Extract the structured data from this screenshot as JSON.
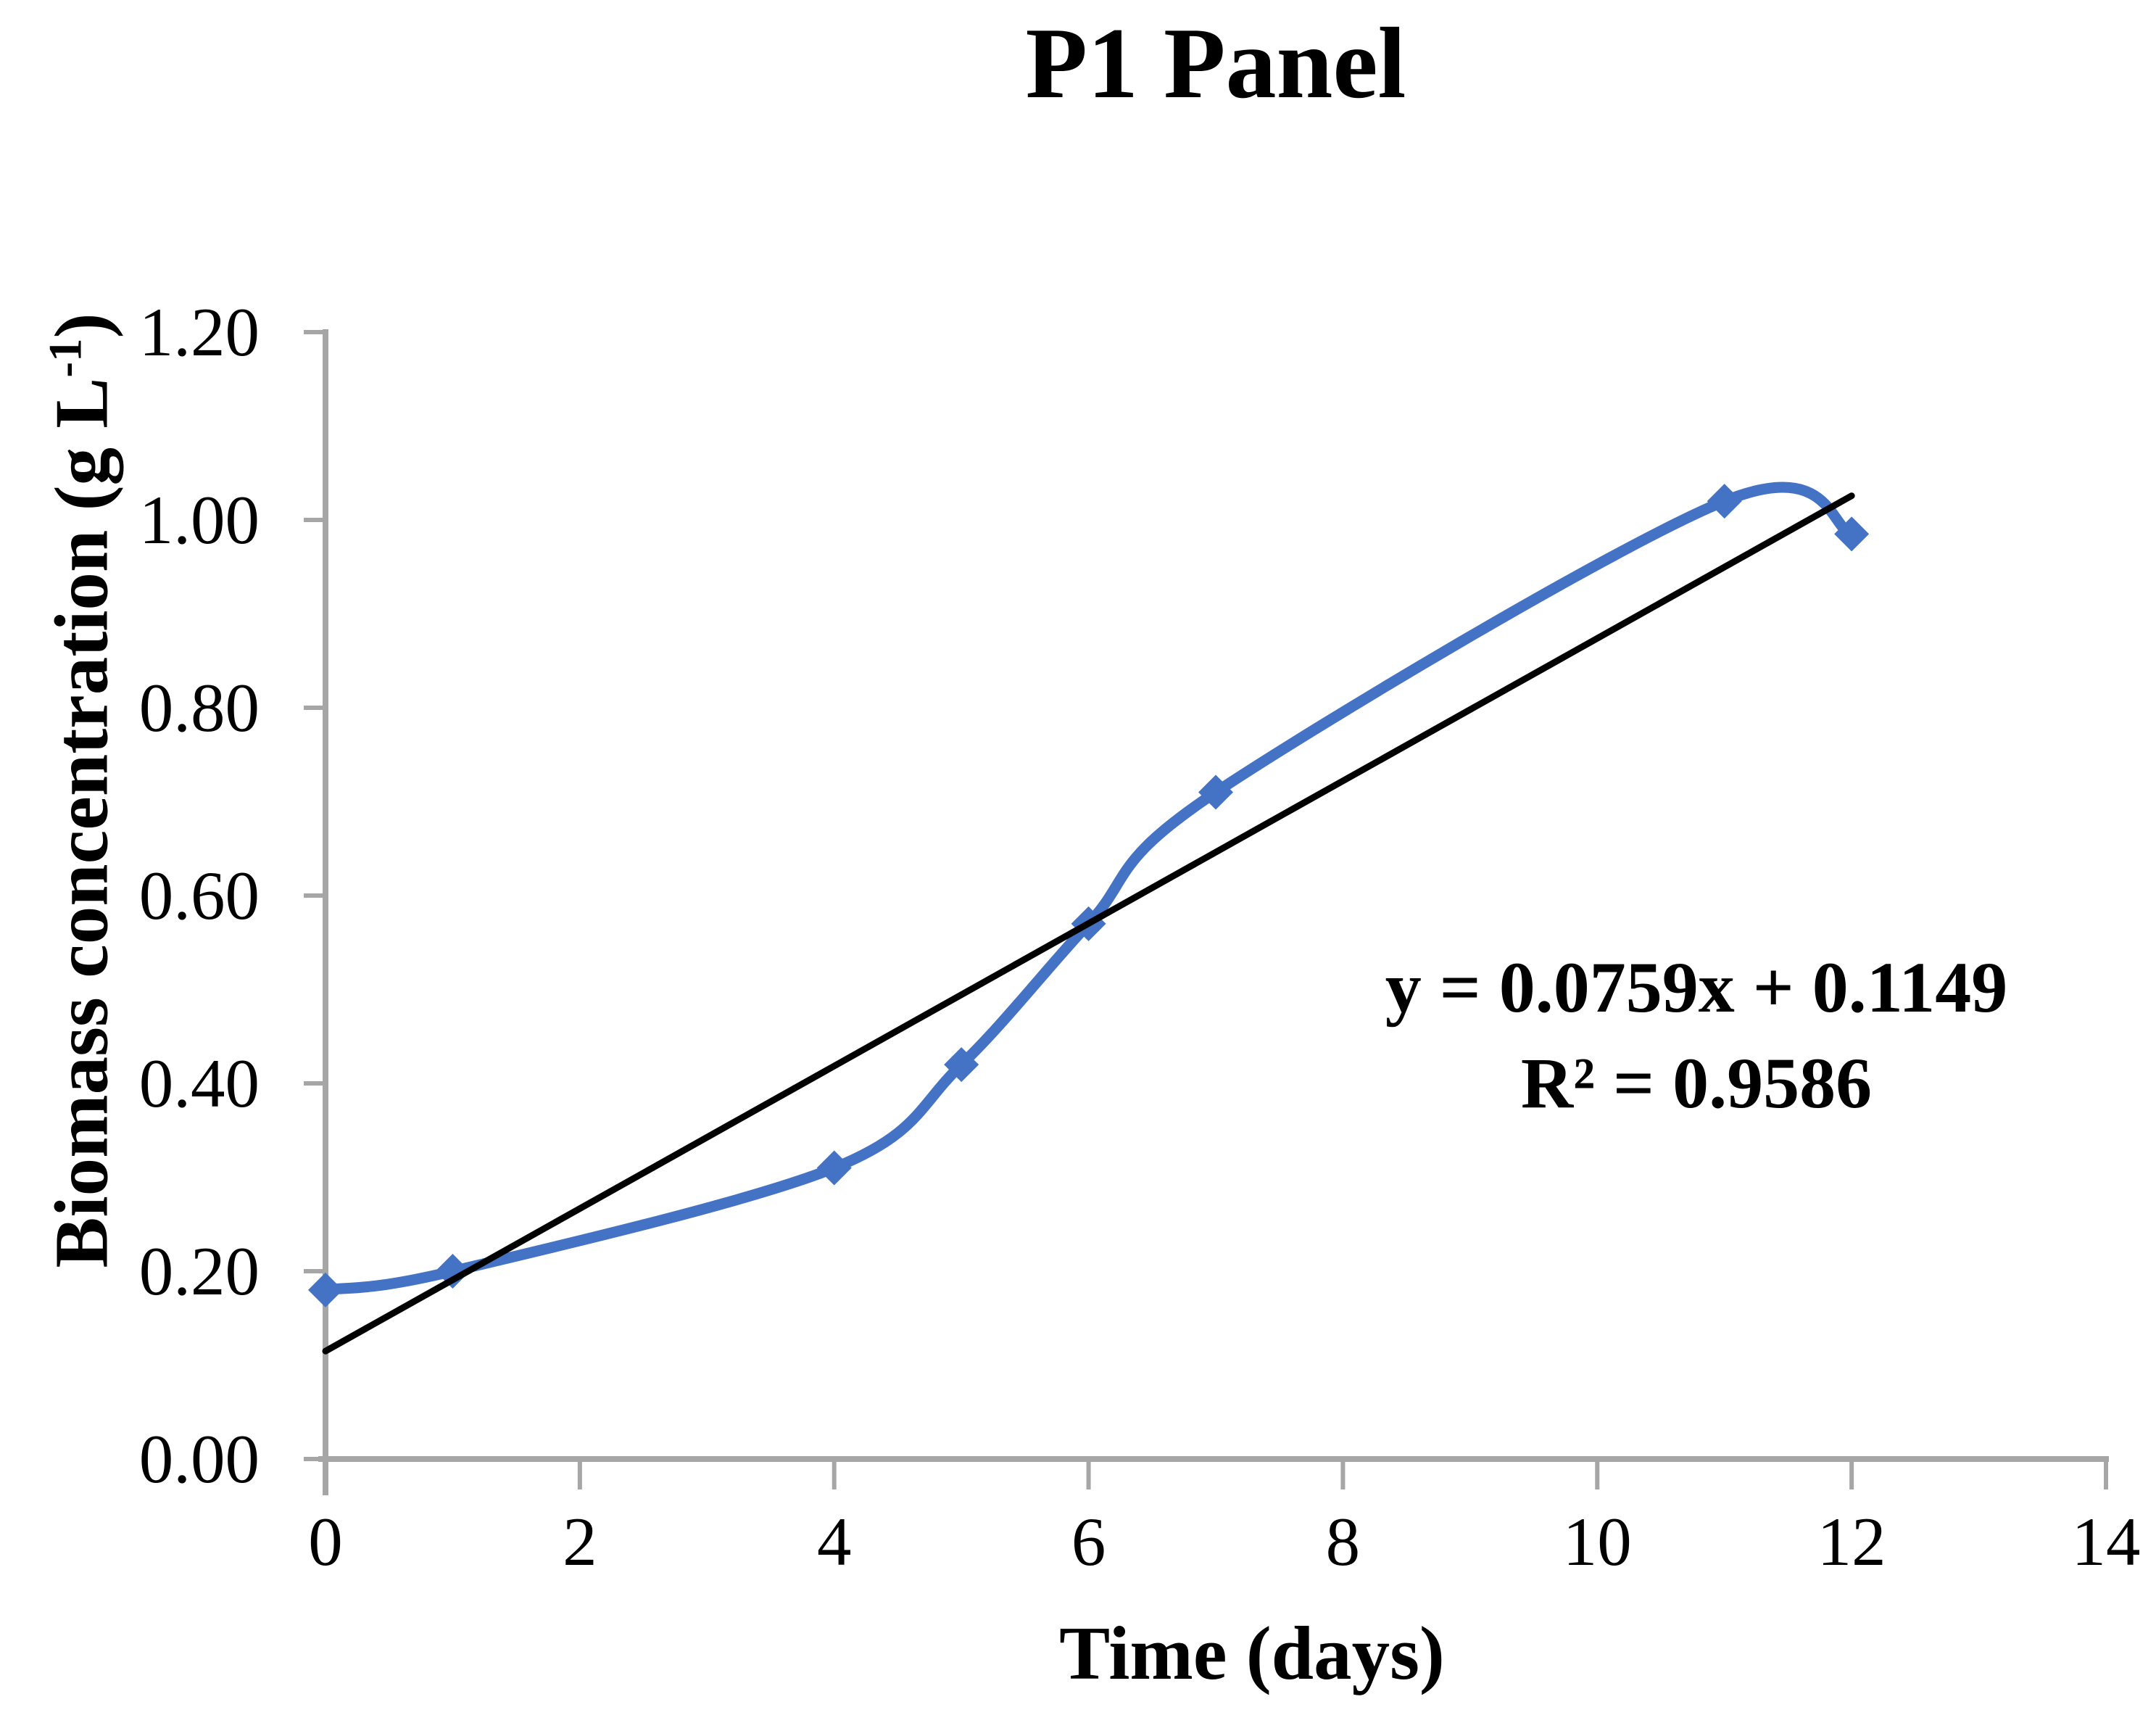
{
  "title": "P1 Panel",
  "axes": {
    "y_label_main": "Biomass concentration (g L",
    "y_label_sup": "-1",
    "y_label_close": ")",
    "x_label": "Time (days)"
  },
  "equation": {
    "line1": "y = 0.0759x + 0.1149",
    "line2": "R² = 0.9586"
  },
  "chart_data": {
    "type": "line",
    "title": "P1 Panel",
    "xlabel": "Time (days)",
    "ylabel": "Biomass concentration (g L-1)",
    "series": [
      {
        "name": "Biomass concentration",
        "x": [
          0,
          1,
          4,
          5,
          6,
          7,
          11,
          12
        ],
        "y": [
          0.18,
          0.2,
          0.31,
          0.42,
          0.57,
          0.71,
          1.02,
          0.985
        ],
        "marker": "diamond",
        "smooth": true
      }
    ],
    "trendline": {
      "slope": 0.0759,
      "intercept": 0.1149,
      "x_start": 0,
      "x_end": 12,
      "equation": "y = 0.0759x + 0.1149",
      "r_squared": "R² = 0.9586"
    },
    "xlim": [
      0,
      14
    ],
    "ylim": [
      0,
      1.2
    ],
    "x_ticks": [
      0,
      2,
      4,
      6,
      8,
      10,
      12,
      14
    ],
    "y_ticks": [
      "0.00",
      "0.20",
      "0.40",
      "0.60",
      "0.80",
      "1.00",
      "1.20"
    ],
    "grid": false,
    "legend_position": "none",
    "colors": {
      "series": "#4472C4",
      "trendline": "#000000",
      "axis": "#A6A6A6",
      "text": "#000000",
      "background": "#FFFFFF"
    }
  }
}
